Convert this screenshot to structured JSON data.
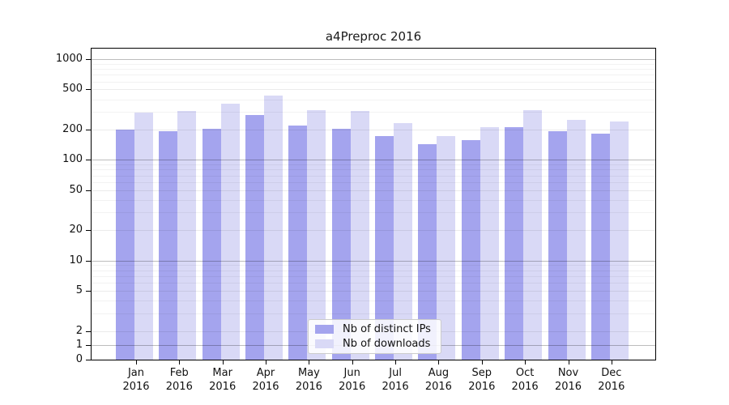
{
  "figure": {
    "background": "#ffffff"
  },
  "chart_data": {
    "type": "bar",
    "title": "a4Preproc 2016",
    "yscale": "symlog",
    "grid": true,
    "legend_position": "lower-center-inside",
    "ylim": [
      0,
      1300
    ],
    "yticks": [
      1000,
      500,
      200,
      100,
      50,
      20,
      10,
      5,
      2,
      1,
      0
    ],
    "categories": [
      {
        "month": "Jan",
        "year": "2016"
      },
      {
        "month": "Feb",
        "year": "2016"
      },
      {
        "month": "Mar",
        "year": "2016"
      },
      {
        "month": "Apr",
        "year": "2016"
      },
      {
        "month": "May",
        "year": "2016"
      },
      {
        "month": "Jun",
        "year": "2016"
      },
      {
        "month": "Jul",
        "year": "2016"
      },
      {
        "month": "Aug",
        "year": "2016"
      },
      {
        "month": "Sep",
        "year": "2016"
      },
      {
        "month": "Oct",
        "year": "2016"
      },
      {
        "month": "Nov",
        "year": "2016"
      },
      {
        "month": "Dec",
        "year": "2016"
      }
    ],
    "series": [
      {
        "name": "Nb of distinct IPs",
        "color": "#a4a4ee",
        "values": [
          198,
          192,
          205,
          278,
          221,
          205,
          172,
          143,
          158,
          210,
          193,
          181
        ]
      },
      {
        "name": "Nb of downloads",
        "color": "#d9d9f6",
        "values": [
          296,
          305,
          360,
          434,
          311,
          306,
          231,
          172,
          213,
          310,
          250,
          240
        ]
      }
    ]
  }
}
